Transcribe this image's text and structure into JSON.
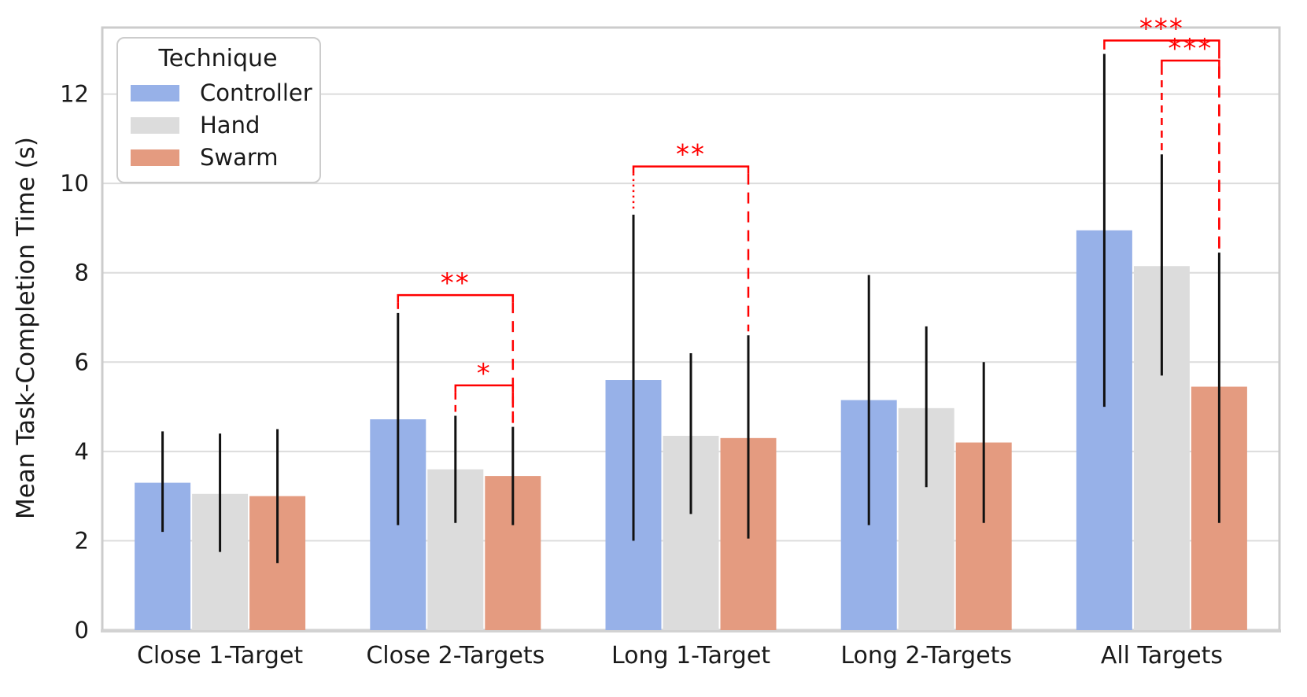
{
  "chart_data": {
    "type": "bar",
    "title": "",
    "xlabel": "",
    "ylabel": "Mean Task-Completion Time (s)",
    "categories": [
      "Close 1-Target",
      "Close 2-Targets",
      "Long 1-Target",
      "Long 2-Targets",
      "All Targets"
    ],
    "yticks": [
      0,
      2,
      4,
      6,
      8,
      10,
      12
    ],
    "ylim": [
      0,
      13.49
    ],
    "grid": "horizontal",
    "legend": {
      "title": "Technique",
      "position": "upper-left"
    },
    "series": [
      {
        "name": "Controller",
        "color": "#97b1e8",
        "values": [
          3.3,
          4.72,
          5.6,
          5.15,
          8.95
        ],
        "err_low": [
          2.2,
          2.35,
          2.0,
          2.35,
          5.0
        ],
        "err_high": [
          4.45,
          7.1,
          9.3,
          7.95,
          12.9
        ]
      },
      {
        "name": "Hand",
        "color": "#dcdcdc",
        "values": [
          3.05,
          3.6,
          4.35,
          4.97,
          8.15
        ],
        "err_low": [
          1.75,
          2.4,
          2.6,
          3.2,
          5.7
        ],
        "err_high": [
          4.4,
          4.8,
          6.2,
          6.8,
          10.65
        ]
      },
      {
        "name": "Swarm",
        "color": "#e49b80",
        "values": [
          3.0,
          3.45,
          4.3,
          4.2,
          5.45
        ],
        "err_low": [
          1.5,
          2.35,
          2.05,
          2.4,
          2.4
        ],
        "err_high": [
          4.5,
          4.55,
          6.6,
          6.0,
          8.45
        ]
      }
    ],
    "significance": [
      {
        "category": "Close 2-Targets",
        "from": "Controller",
        "to": "Swarm",
        "label": "**",
        "y": 7.5,
        "left_style": "dashed"
      },
      {
        "category": "Close 2-Targets",
        "from": "Hand",
        "to": "Swarm",
        "label": "*",
        "y": 5.48,
        "left_style": "dashed"
      },
      {
        "category": "Long 1-Target",
        "from": "Controller",
        "to": "Swarm",
        "label": "**",
        "y": 10.38,
        "left_style": "dotted"
      },
      {
        "category": "All Targets",
        "from": "Controller",
        "to": "Swarm",
        "label": "***",
        "y": 13.2,
        "left_style": "dotted"
      },
      {
        "category": "All Targets",
        "from": "Hand",
        "to": "Swarm",
        "label": "***",
        "y": 12.75,
        "left_style": "dashed"
      }
    ],
    "annotation_color": "#ff0000",
    "error_bar_color": "#111111",
    "grid_color": "#dcdcdc",
    "spine_color": "#cccccc",
    "tick_label_color": "#1a1a1a"
  }
}
